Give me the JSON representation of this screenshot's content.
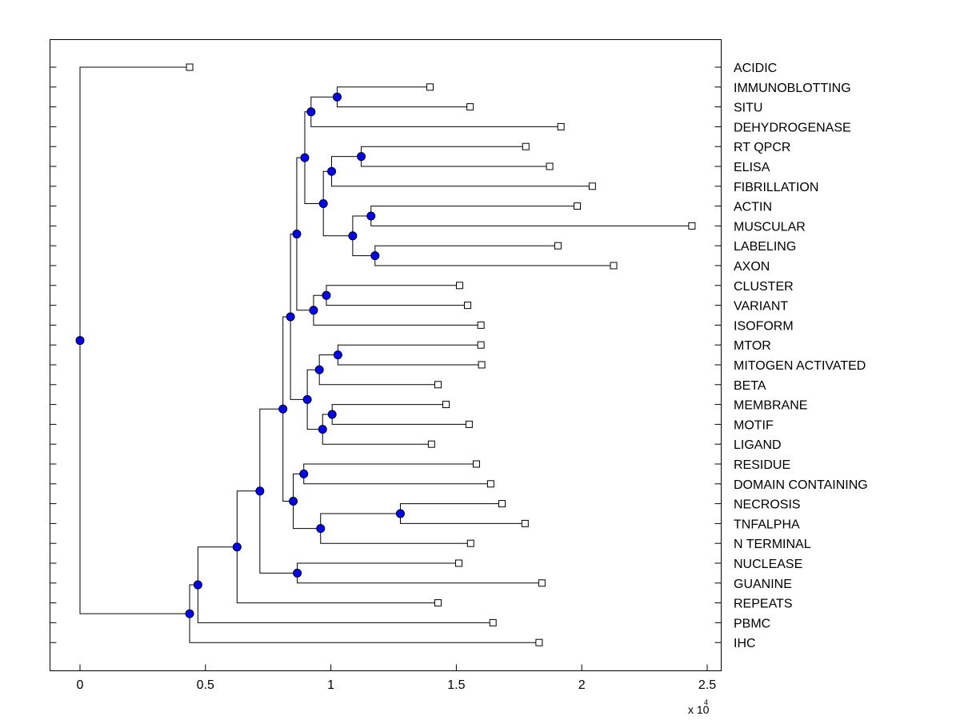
{
  "chart_data": {
    "type": "dendrogram",
    "orientation": "horizontal",
    "title": "",
    "xlabel": "",
    "ylabel": "",
    "xlim": [
      -0.12,
      2.56
    ],
    "xticks": [
      0,
      0.5,
      1,
      1.5,
      2,
      2.5
    ],
    "xtick_labels": [
      "0",
      "0.5",
      "1",
      "1.5",
      "2",
      "2.5"
    ],
    "x_scale_prefix": "x 10",
    "x_scale_exponent": "4",
    "leaves": [
      {
        "label": "ACIDIC",
        "x": 0.437
      },
      {
        "label": "IMMUNOBLOTTING",
        "x": 1.395
      },
      {
        "label": "SITU",
        "x": 1.555
      },
      {
        "label": "DEHYDROGENASE",
        "x": 1.917
      },
      {
        "label": "RT QPCR",
        "x": 1.777
      },
      {
        "label": "ELISA",
        "x": 1.872
      },
      {
        "label": "FIBRILLATION",
        "x": 2.042
      },
      {
        "label": "ACTIN",
        "x": 1.982
      },
      {
        "label": "MUSCULAR",
        "x": 2.439
      },
      {
        "label": "LABELING",
        "x": 1.905
      },
      {
        "label": "AXON",
        "x": 2.127
      },
      {
        "label": "CLUSTER",
        "x": 1.513
      },
      {
        "label": "VARIANT",
        "x": 1.545
      },
      {
        "label": "ISOFORM",
        "x": 1.598
      },
      {
        "label": "MTOR",
        "x": 1.598
      },
      {
        "label": "MITOGEN ACTIVATED",
        "x": 1.601
      },
      {
        "label": "BETA",
        "x": 1.427
      },
      {
        "label": "MEMBRANE",
        "x": 1.459
      },
      {
        "label": "MOTIF",
        "x": 1.551
      },
      {
        "label": "LIGAND",
        "x": 1.401
      },
      {
        "label": "RESIDUE",
        "x": 1.58
      },
      {
        "label": "DOMAIN CONTAINING",
        "x": 1.637
      },
      {
        "label": "NECROSIS",
        "x": 1.682
      },
      {
        "label": "TNFALPHA",
        "x": 1.774
      },
      {
        "label": "N TERMINAL",
        "x": 1.557
      },
      {
        "label": "NUCLEASE",
        "x": 1.51
      },
      {
        "label": "GUANINE",
        "x": 1.841
      },
      {
        "label": "REPEATS",
        "x": 1.427
      },
      {
        "label": "PBMC",
        "x": 1.646
      },
      {
        "label": "IHC",
        "x": 1.83
      }
    ],
    "nodes": [
      {
        "id": "n_root",
        "x": 0.0,
        "children": [
          "L0",
          "n_pbmc_grp"
        ]
      },
      {
        "id": "n_pbmc_grp",
        "x": 0.437,
        "children": [
          "n_pbmc",
          "L29"
        ]
      },
      {
        "id": "n_pbmc",
        "x": 0.47,
        "children": [
          "n_rep",
          "L28"
        ]
      },
      {
        "id": "n_rep",
        "x": 0.626,
        "children": [
          "n_gua",
          "L27"
        ]
      },
      {
        "id": "n_gua",
        "x": 0.717,
        "children": [
          "n_big",
          "n_nuc"
        ]
      },
      {
        "id": "n_nuc",
        "x": 0.866,
        "children": [
          "L25",
          "L26"
        ]
      },
      {
        "id": "n_big",
        "x": 0.809,
        "children": [
          "n_mid",
          "n_res"
        ]
      },
      {
        "id": "n_res",
        "x": 0.85,
        "children": [
          "n_dom",
          "n_nec"
        ]
      },
      {
        "id": "n_dom",
        "x": 0.892,
        "children": [
          "L20",
          "L21"
        ]
      },
      {
        "id": "n_nec",
        "x": 0.959,
        "children": [
          "n_tnf",
          "L24"
        ]
      },
      {
        "id": "n_tnf",
        "x": 1.277,
        "children": [
          "L22",
          "L23"
        ]
      },
      {
        "id": "n_mid",
        "x": 0.839,
        "children": [
          "n_top",
          "n_mtor"
        ]
      },
      {
        "id": "n_mtor",
        "x": 0.906,
        "children": [
          "n_beta",
          "n_mem"
        ]
      },
      {
        "id": "n_beta",
        "x": 0.954,
        "children": [
          "n_mitogen",
          "L16"
        ]
      },
      {
        "id": "n_mitogen",
        "x": 1.028,
        "children": [
          "L14",
          "L15"
        ]
      },
      {
        "id": "n_mem",
        "x": 0.967,
        "children": [
          "n_motif",
          "L19"
        ]
      },
      {
        "id": "n_motif",
        "x": 1.005,
        "children": [
          "L17",
          "L18"
        ]
      },
      {
        "id": "n_top",
        "x": 0.864,
        "children": [
          "n_upper",
          "n_iso"
        ]
      },
      {
        "id": "n_iso",
        "x": 0.931,
        "children": [
          "n_clu",
          "L13"
        ]
      },
      {
        "id": "n_clu",
        "x": 0.982,
        "children": [
          "L11",
          "L12"
        ]
      },
      {
        "id": "n_upper",
        "x": 0.896,
        "children": [
          "n_situ",
          "n_fib"
        ]
      },
      {
        "id": "n_situ",
        "x": 0.921,
        "children": [
          "n_imm",
          "L3"
        ]
      },
      {
        "id": "n_imm",
        "x": 1.025,
        "children": [
          "L1",
          "L2"
        ]
      },
      {
        "id": "n_fib",
        "x": 0.97,
        "children": [
          "n_elisa_g",
          "n_lab"
        ]
      },
      {
        "id": "n_elisa_g",
        "x": 1.003,
        "children": [
          "n_elisa",
          "L6"
        ]
      },
      {
        "id": "n_elisa",
        "x": 1.121,
        "children": [
          "L4",
          "L5"
        ]
      },
      {
        "id": "n_lab",
        "x": 1.087,
        "children": [
          "n_act",
          "n_axon"
        ]
      },
      {
        "id": "n_act",
        "x": 1.16,
        "children": [
          "L7",
          "L8"
        ]
      },
      {
        "id": "n_axon",
        "x": 1.176,
        "children": [
          "L9",
          "L10"
        ]
      }
    ]
  },
  "colors": {
    "node_fill": "#0000ff",
    "line": "#000000",
    "leaf_fill": "#ffffff"
  }
}
